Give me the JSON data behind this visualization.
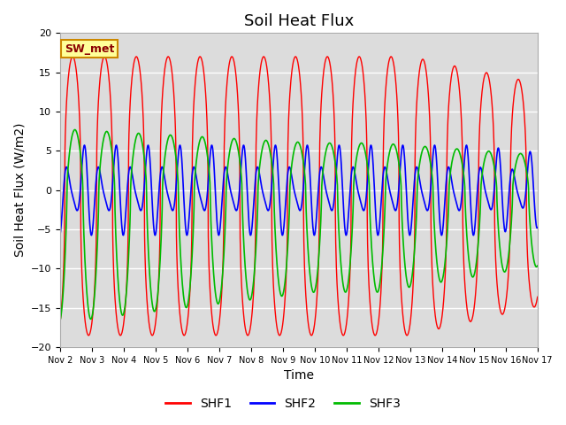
{
  "title": "Soil Heat Flux",
  "xlabel": "Time",
  "ylabel": "Soil Heat Flux (W/m2)",
  "ylim": [
    -20,
    20
  ],
  "yticks": [
    -20,
    -15,
    -10,
    -5,
    0,
    5,
    10,
    15,
    20
  ],
  "xlabels": [
    "Nov 2",
    "Nov 3",
    "Nov 4",
    "Nov 5",
    "Nov 6",
    "Nov 7",
    "Nov 8",
    "Nov 9",
    "Nov 10",
    "Nov 11",
    "Nov 12",
    "Nov 13",
    "Nov 14",
    "Nov 15",
    "Nov 16",
    "Nov 17"
  ],
  "annotation_text": "SW_met",
  "annotation_bg": "#FFFF99",
  "annotation_border": "#CC8800",
  "line_colors": [
    "#FF0000",
    "#0000FF",
    "#00BB00"
  ],
  "line_labels": [
    "SHF1",
    "SHF2",
    "SHF3"
  ],
  "background_color": "#DCDCDC",
  "title_fontsize": 13,
  "axis_label_fontsize": 10,
  "tick_fontsize": 8,
  "legend_fontsize": 10
}
